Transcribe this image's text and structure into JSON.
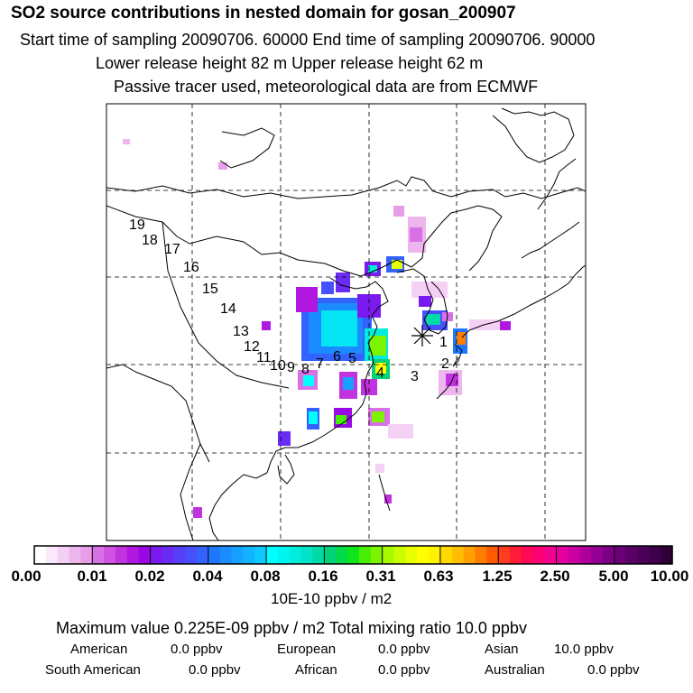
{
  "header": {
    "title": "SO2 source contributions in nested domain for gosan_200907",
    "times": "Start time of sampling 20090706. 60000     End time of sampling 20090706. 90000",
    "heights": "Lower release height   82 m          Upper release height   62 m",
    "tracer": "Passive tracer used, meteorological data are from ECMWF"
  },
  "map": {
    "trajectory_labels": [
      "1",
      "2",
      "3",
      "4",
      "5",
      "6",
      "7",
      "8",
      "9",
      "10",
      "11",
      "12",
      "13",
      "14",
      "15",
      "16",
      "17",
      "18",
      "19"
    ],
    "receptor_marker": "asterisk-icon"
  },
  "colorbar": {
    "tick_labels": [
      "0.00",
      "0.01",
      "0.02",
      "0.04",
      "0.08",
      "0.16",
      "0.31",
      "0.63",
      "1.25",
      "2.50",
      "5.00",
      "10.00"
    ],
    "colors": [
      [
        "#ffffff",
        "#fbe9fb",
        "#f5d0f5",
        "#eeb6ee",
        "#e79de7"
      ],
      [
        "#d971e6",
        "#cf52e3",
        "#c233e0",
        "#b018e0",
        "#9a08e6"
      ],
      [
        "#7a1aef",
        "#6a2cf4",
        "#583ef8",
        "#4650fb",
        "#3462fd"
      ],
      [
        "#1e78ff",
        "#1a8cff",
        "#16a0ff",
        "#12b4ff",
        "#0ec8ff"
      ],
      [
        "#00ffff",
        "#00f5f0",
        "#00ecdd",
        "#00e3c6",
        "#00daa8"
      ],
      [
        "#00d27a",
        "#00d94a",
        "#10e41c",
        "#48ee06",
        "#7cf400"
      ],
      [
        "#a8f800",
        "#ccfc00",
        "#e8ff00",
        "#ffff00",
        "#fff200"
      ],
      [
        "#ffd800",
        "#ffbe00",
        "#ffa000",
        "#ff7e00",
        "#ff5a00"
      ],
      [
        "#ff3c1e",
        "#ff1c38",
        "#ff0a56",
        "#fc0074",
        "#f40090"
      ],
      [
        "#e4009e",
        "#cc00a0",
        "#b0009c",
        "#940094",
        "#7c0086"
      ],
      [
        "#6a0076",
        "#5a0066",
        "#4c0058",
        "#3e004a",
        "#2e0038"
      ]
    ],
    "unit": "10E-10 ppbv / m2"
  },
  "summary": {
    "max_row": "Maximum value  0.225E-09 ppbv / m2      Total mixing ratio       10.0 ppbv",
    "regions": [
      {
        "name": "American",
        "value": "0.0 ppbv"
      },
      {
        "name": "European",
        "value": "0.0 ppbv"
      },
      {
        "name": "Asian",
        "value": "10.0 ppbv"
      },
      {
        "name": "South American",
        "value": "0.0 ppbv"
      },
      {
        "name": "African",
        "value": "0.0 ppbv"
      },
      {
        "name": "Australian",
        "value": "0.0 ppbv"
      }
    ]
  }
}
